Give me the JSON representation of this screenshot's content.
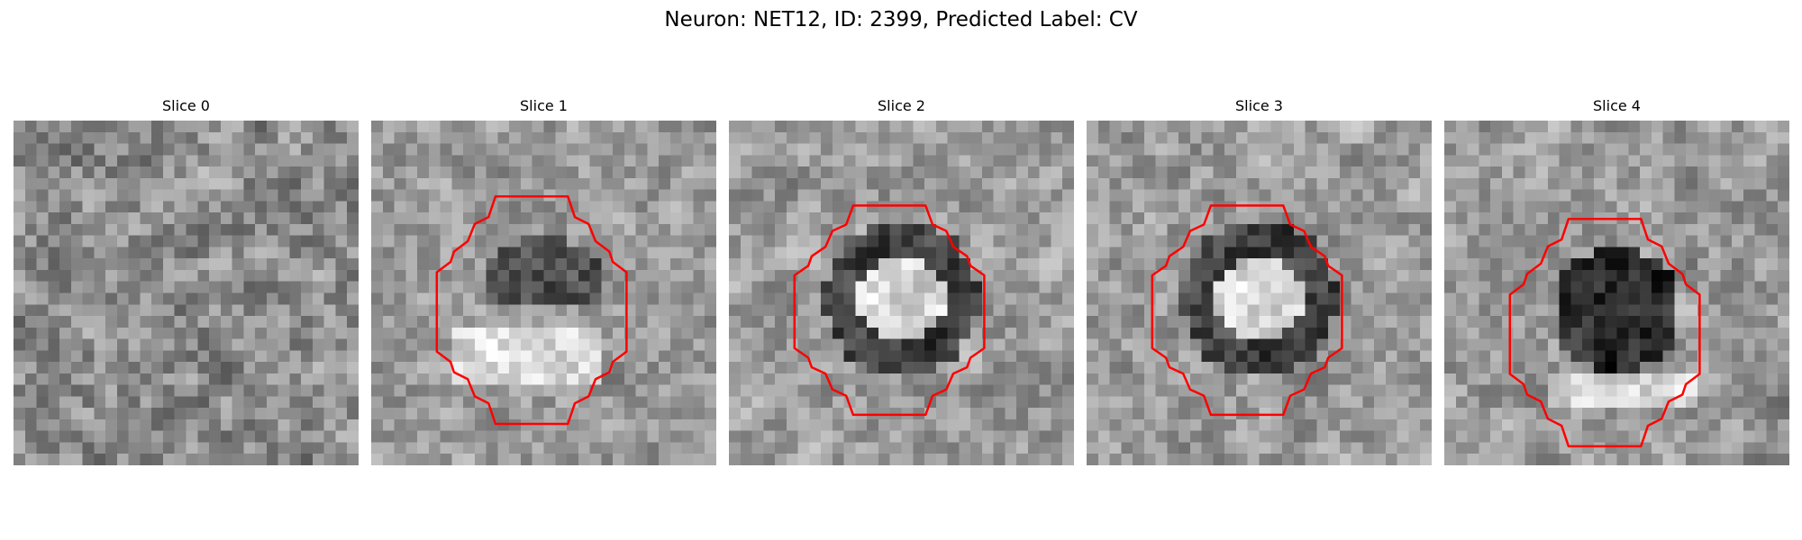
{
  "figure": {
    "title": "Neuron: NET12, ID: 2399, Predicted Label: CV"
  },
  "colors": {
    "contour": "#ff0000",
    "background": "#ffffff"
  },
  "panels": [
    {
      "title": "Slice 0",
      "has_contour": false,
      "pattern": "noise"
    },
    {
      "title": "Slice 1",
      "has_contour": true,
      "pattern": "dark-ring-bright-below"
    },
    {
      "title": "Slice 2",
      "has_contour": true,
      "pattern": "dark-ring-bright-center"
    },
    {
      "title": "Slice 3",
      "has_contour": true,
      "pattern": "dark-ring-bright-center"
    },
    {
      "title": "Slice 4",
      "has_contour": true,
      "pattern": "dark-center"
    }
  ]
}
